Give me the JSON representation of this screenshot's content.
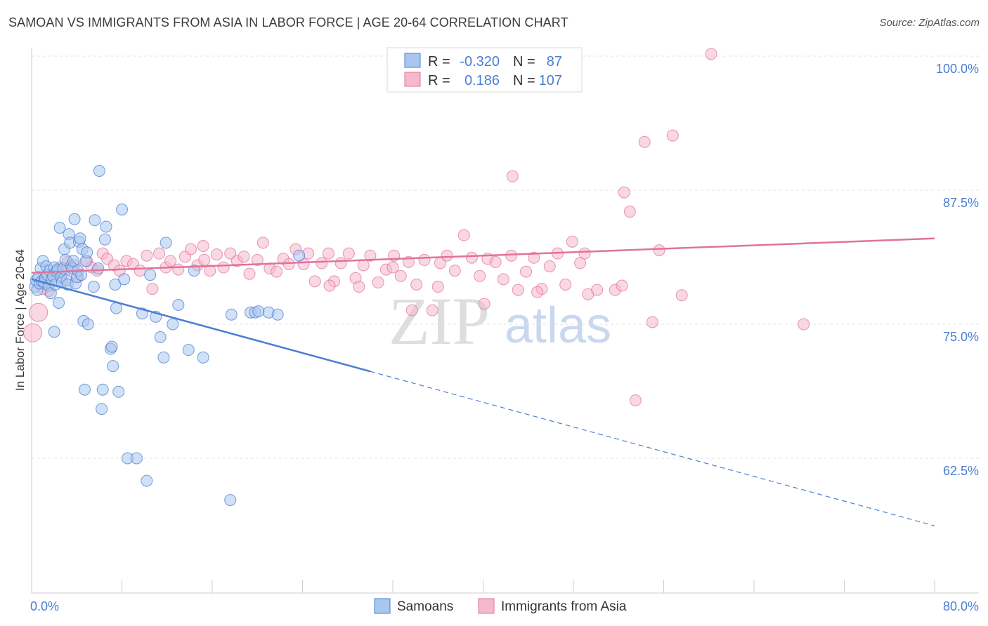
{
  "title": "SAMOAN VS IMMIGRANTS FROM ASIA IN LABOR FORCE | AGE 20-64 CORRELATION CHART",
  "source": "Source: ZipAtlas.com",
  "watermark": {
    "zip": "ZIP",
    "atlas": "atlas"
  },
  "colors": {
    "samoans": "#4a7fd0",
    "samoans_fill": "#a9c6ee",
    "asia": "#e0739a",
    "asia_fill": "#f5b8cc",
    "axis_text": "#4a7fd0",
    "grid": "#e3e3e3"
  },
  "legend": {
    "r_label": "R =",
    "n_label": "N =",
    "rows": [
      {
        "series": "Samoans",
        "r": "-0.320",
        "n": "87"
      },
      {
        "series": "Immigrants from Asia",
        "r": "0.186",
        "n": "107"
      }
    ]
  },
  "bottom_legend": [
    "Samoans",
    "Immigrants from Asia"
  ],
  "chart_data": {
    "type": "scatter",
    "title": "SAMOAN VS IMMIGRANTS FROM ASIA IN LABOR FORCE | AGE 20-64 CORRELATION CHART",
    "xlabel": "",
    "ylabel": "In Labor Force | Age 20-64",
    "xlim": [
      0,
      80
    ],
    "ylim": [
      55,
      100
    ],
    "x_tick_labels": [
      "0.0%",
      "80.0%"
    ],
    "y_ticks": [
      62.5,
      75.0,
      87.5,
      100.0
    ],
    "y_tick_labels": [
      "62.5%",
      "75.0%",
      "87.5%",
      "100.0%"
    ],
    "grid": true,
    "legend_position": "top-center",
    "series": [
      {
        "name": "Samoans",
        "trend": {
          "x_start": 0,
          "y_start": 79.2,
          "x_solid_end": 30,
          "y_solid_end": 70.6,
          "x_dashed_end": 80,
          "y_dashed_end": 56.2
        },
        "points": [
          [
            0.3,
            78.5
          ],
          [
            0.4,
            79.1
          ],
          [
            0.5,
            78.2
          ],
          [
            0.6,
            79.4
          ],
          [
            0.7,
            78.8
          ],
          [
            0.8,
            80.2
          ],
          [
            0.9,
            79.0
          ],
          [
            1.0,
            80.9
          ],
          [
            1.1,
            78.9
          ],
          [
            1.2,
            79.3
          ],
          [
            1.3,
            80.4
          ],
          [
            1.4,
            79.6
          ],
          [
            1.5,
            78.6
          ],
          [
            1.6,
            80.0
          ],
          [
            1.7,
            77.9
          ],
          [
            1.8,
            79.2
          ],
          [
            1.9,
            79.5
          ],
          [
            2.0,
            80.3
          ],
          [
            2.1,
            78.7
          ],
          [
            2.2,
            79.9
          ],
          [
            2.3,
            80.1
          ],
          [
            2.4,
            77.0
          ],
          [
            2.5,
            84.0
          ],
          [
            2.6,
            79.4
          ],
          [
            2.7,
            78.9
          ],
          [
            2.8,
            80.2
          ],
          [
            2.9,
            82.0
          ],
          [
            3.0,
            81.0
          ],
          [
            3.1,
            79.1
          ],
          [
            3.2,
            78.7
          ],
          [
            3.3,
            83.4
          ],
          [
            3.4,
            82.6
          ],
          [
            3.5,
            80.4
          ],
          [
            3.6,
            80.2
          ],
          [
            3.7,
            80.9
          ],
          [
            3.8,
            84.8
          ],
          [
            3.9,
            78.8
          ],
          [
            4.0,
            79.4
          ],
          [
            4.1,
            80.0
          ],
          [
            4.2,
            82.7
          ],
          [
            4.3,
            83.0
          ],
          [
            4.4,
            79.6
          ],
          [
            4.5,
            82.0
          ],
          [
            4.6,
            75.3
          ],
          [
            4.7,
            68.9
          ],
          [
            4.8,
            80.9
          ],
          [
            4.9,
            81.7
          ],
          [
            5.0,
            75.0
          ],
          [
            5.5,
            78.5
          ],
          [
            5.6,
            84.7
          ],
          [
            5.9,
            80.2
          ],
          [
            6.0,
            89.3
          ],
          [
            6.3,
            68.9
          ],
          [
            6.5,
            82.9
          ],
          [
            6.6,
            84.1
          ],
          [
            7.0,
            72.7
          ],
          [
            7.1,
            72.9
          ],
          [
            7.2,
            71.1
          ],
          [
            7.4,
            78.7
          ],
          [
            7.5,
            76.5
          ],
          [
            7.7,
            68.7
          ],
          [
            8.0,
            85.7
          ],
          [
            8.2,
            79.2
          ],
          [
            8.5,
            62.5
          ],
          [
            9.3,
            62.5
          ],
          [
            9.8,
            76.0
          ],
          [
            10.2,
            60.4
          ],
          [
            10.5,
            79.6
          ],
          [
            11.0,
            75.7
          ],
          [
            11.4,
            73.8
          ],
          [
            11.7,
            71.9
          ],
          [
            11.9,
            82.6
          ],
          [
            12.5,
            75.0
          ],
          [
            13.0,
            76.8
          ],
          [
            13.9,
            72.6
          ],
          [
            14.4,
            80.0
          ],
          [
            15.2,
            71.9
          ],
          [
            17.6,
            58.6
          ],
          [
            17.7,
            75.9
          ],
          [
            19.4,
            76.1
          ],
          [
            19.8,
            76.1
          ],
          [
            20.1,
            76.2
          ],
          [
            21.0,
            76.1
          ],
          [
            21.8,
            75.9
          ],
          [
            23.7,
            81.4
          ],
          [
            2.0,
            74.3
          ],
          [
            6.2,
            67.1
          ]
        ]
      },
      {
        "name": "Immigrants from Asia",
        "trend": {
          "x_start": 0,
          "y_start": 79.8,
          "x_end": 80,
          "y_end": 83.0
        },
        "points": [
          [
            0.1,
            74.2
          ],
          [
            0.6,
            76.1
          ],
          [
            1.5,
            78.1
          ],
          [
            2.0,
            79.7
          ],
          [
            2.5,
            80.3
          ],
          [
            3.2,
            80.8
          ],
          [
            3.8,
            80.5
          ],
          [
            4.1,
            79.4
          ],
          [
            4.9,
            80.9
          ],
          [
            5.3,
            80.3
          ],
          [
            5.8,
            80.0
          ],
          [
            6.3,
            81.6
          ],
          [
            6.7,
            81.1
          ],
          [
            7.3,
            80.5
          ],
          [
            7.8,
            80.0
          ],
          [
            8.4,
            80.9
          ],
          [
            9.0,
            80.6
          ],
          [
            9.6,
            80.0
          ],
          [
            10.2,
            81.4
          ],
          [
            10.7,
            78.3
          ],
          [
            11.3,
            81.6
          ],
          [
            11.9,
            80.3
          ],
          [
            12.3,
            80.9
          ],
          [
            13.0,
            80.1
          ],
          [
            13.6,
            81.3
          ],
          [
            14.1,
            82.0
          ],
          [
            14.7,
            80.5
          ],
          [
            15.3,
            81.0
          ],
          [
            15.8,
            80.0
          ],
          [
            16.4,
            81.5
          ],
          [
            17.0,
            80.3
          ],
          [
            17.6,
            81.6
          ],
          [
            18.2,
            80.9
          ],
          [
            18.8,
            81.3
          ],
          [
            19.3,
            79.7
          ],
          [
            20.0,
            81.0
          ],
          [
            20.5,
            82.6
          ],
          [
            21.1,
            80.2
          ],
          [
            21.7,
            79.9
          ],
          [
            22.3,
            81.1
          ],
          [
            22.8,
            80.6
          ],
          [
            23.4,
            82.0
          ],
          [
            24.1,
            80.6
          ],
          [
            24.5,
            81.6
          ],
          [
            25.1,
            79.0
          ],
          [
            25.7,
            80.7
          ],
          [
            26.3,
            81.6
          ],
          [
            26.8,
            79.0
          ],
          [
            27.4,
            80.7
          ],
          [
            28.1,
            81.6
          ],
          [
            28.7,
            79.3
          ],
          [
            29.4,
            80.5
          ],
          [
            30.0,
            81.4
          ],
          [
            30.7,
            78.9
          ],
          [
            31.4,
            80.1
          ],
          [
            32.1,
            81.4
          ],
          [
            32.7,
            79.5
          ],
          [
            33.4,
            80.8
          ],
          [
            34.1,
            78.7
          ],
          [
            34.8,
            81.0
          ],
          [
            35.5,
            76.3
          ],
          [
            36.2,
            80.7
          ],
          [
            36.8,
            81.4
          ],
          [
            37.5,
            80.0
          ],
          [
            38.3,
            83.3
          ],
          [
            39.0,
            81.2
          ],
          [
            39.7,
            79.5
          ],
          [
            40.4,
            81.1
          ],
          [
            41.1,
            80.8
          ],
          [
            41.8,
            79.2
          ],
          [
            42.5,
            81.4
          ],
          [
            43.1,
            78.2
          ],
          [
            43.8,
            79.9
          ],
          [
            44.5,
            81.2
          ],
          [
            45.2,
            78.3
          ],
          [
            45.9,
            80.4
          ],
          [
            46.6,
            81.6
          ],
          [
            47.3,
            78.7
          ],
          [
            47.9,
            82.7
          ],
          [
            48.6,
            80.7
          ],
          [
            49.3,
            77.8
          ],
          [
            50.1,
            78.2
          ],
          [
            51.7,
            78.2
          ],
          [
            53.0,
            85.5
          ],
          [
            54.3,
            92.0
          ],
          [
            55.0,
            75.2
          ],
          [
            56.8,
            92.6
          ],
          [
            57.6,
            77.7
          ],
          [
            60.2,
            100.2
          ],
          [
            68.4,
            75.0
          ],
          [
            48.2,
            100.1
          ],
          [
            42.6,
            88.8
          ],
          [
            52.5,
            87.3
          ],
          [
            33.7,
            76.3
          ],
          [
            26.4,
            78.6
          ],
          [
            40.1,
            76.9
          ],
          [
            44.8,
            78.0
          ],
          [
            49.0,
            81.6
          ],
          [
            52.3,
            78.6
          ],
          [
            55.6,
            81.9
          ],
          [
            53.5,
            67.9
          ],
          [
            36.0,
            78.5
          ],
          [
            29.0,
            78.5
          ],
          [
            32.0,
            80.3
          ],
          [
            15.2,
            82.3
          ],
          [
            1.0,
            78.3
          ],
          [
            3.0,
            80.0
          ]
        ]
      }
    ]
  }
}
